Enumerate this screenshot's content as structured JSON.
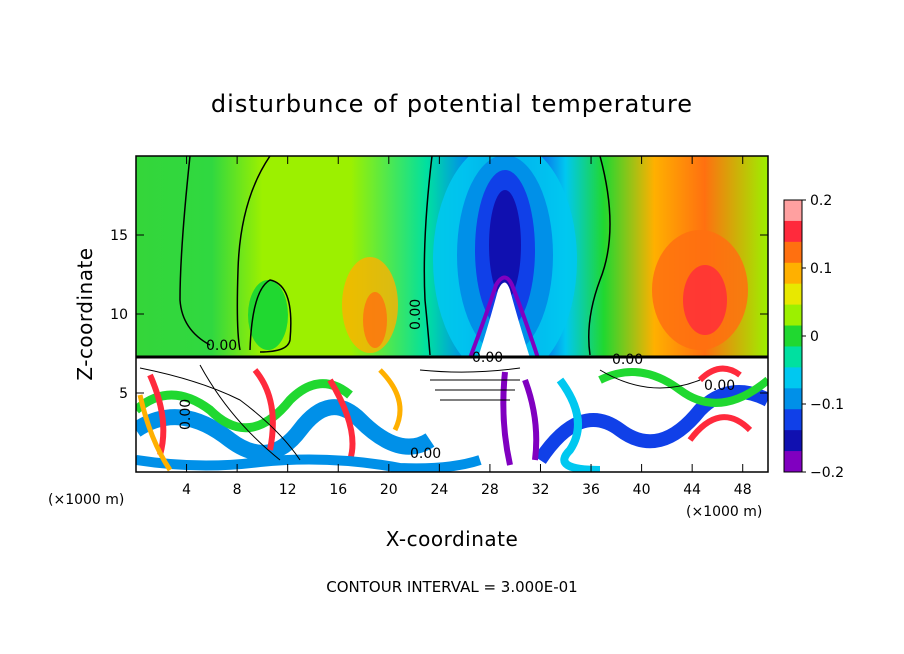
{
  "chart_data": {
    "type": "heatmap",
    "title": "disturbunce of potential temperature",
    "xlabel": "X-coordinate",
    "ylabel": "Z-coordinate",
    "x_unit_left": "(×1000 m)",
    "x_unit_right": "(×1000 m)",
    "xlim": [
      0,
      50
    ],
    "ylim": [
      0,
      20
    ],
    "x_ticks": [
      4,
      8,
      12,
      16,
      20,
      24,
      28,
      32,
      36,
      40,
      44,
      48
    ],
    "y_ticks": [
      5,
      10,
      15
    ],
    "colorbar": {
      "range": [
        -0.2,
        0.2
      ],
      "tick_labels": [
        "0.2",
        "0.1",
        "0",
        "−0.1",
        "−0.2"
      ],
      "tick_values": [
        0.2,
        0.1,
        0,
        -0.1,
        -0.2
      ],
      "colors": [
        "#ffa0a0",
        "#ff2a3c",
        "#ff7010",
        "#ffb000",
        "#e8e800",
        "#9cf000",
        "#20d830",
        "#00e0a0",
        "#00c8f0",
        "#0090e8",
        "#1040e8",
        "#1010b0",
        "#8000c0"
      ]
    },
    "contour_labels": [
      "0.00",
      "0.00",
      "0.00",
      "0.00",
      "0.00",
      "0.00",
      "0.00"
    ],
    "contour_interval_text": "CONTOUR INTERVAL = 3.000E-01"
  }
}
